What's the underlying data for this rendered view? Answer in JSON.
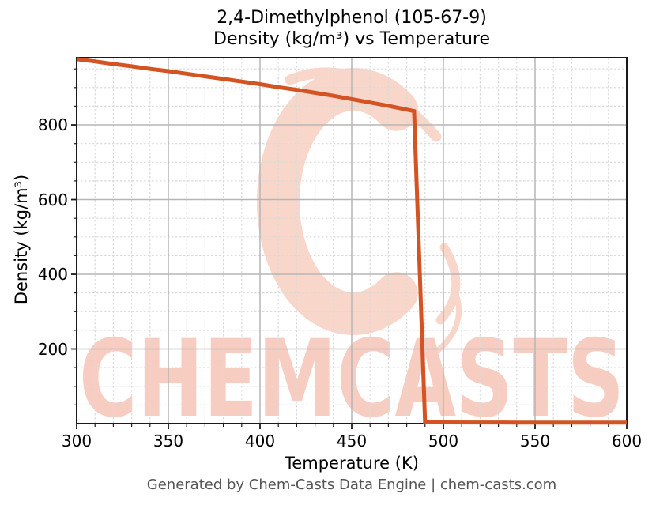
{
  "figure": {
    "watermark_text": "CHEMCASTS",
    "footer": "Generated by Chem-Casts Data Engine | chem-casts.com"
  },
  "colors": {
    "line": "#d35322",
    "grid_major": "#b5b5b5",
    "grid_minor": "#dadada",
    "spine": "#1a1a1a",
    "tick": "#1a1a1a",
    "watermark_logo": "#f9d6ca",
    "watermark_text": "#f8cdc1",
    "title_text": "#000000",
    "footer_text": "#545454"
  },
  "chart_data": {
    "type": "line",
    "title_lines": [
      "2,4-Dimethylphenol (105-67-9)",
      "Density (kg/m³) vs Temperature"
    ],
    "xlabel": "Temperature (K)",
    "ylabel": "Density (kg/m³)",
    "xlim": [
      300,
      600
    ],
    "ylim": [
      0,
      980
    ],
    "x_major_ticks": [
      300,
      350,
      400,
      450,
      500,
      550,
      600
    ],
    "x_minor_step": 10,
    "y_major_ticks": [
      200,
      400,
      600,
      800
    ],
    "y_minor_step": 50,
    "grid": true,
    "legend": "none",
    "series": [
      {
        "name": "Density",
        "points": [
          [
            300,
            976
          ],
          [
            310,
            970
          ],
          [
            320,
            963
          ],
          [
            330,
            957
          ],
          [
            340,
            950
          ],
          [
            350,
            944
          ],
          [
            360,
            937
          ],
          [
            370,
            930
          ],
          [
            380,
            923
          ],
          [
            390,
            916
          ],
          [
            400,
            909
          ],
          [
            410,
            901
          ],
          [
            420,
            894
          ],
          [
            430,
            886
          ],
          [
            440,
            878
          ],
          [
            450,
            869
          ],
          [
            460,
            860
          ],
          [
            470,
            851
          ],
          [
            480,
            841
          ],
          [
            484,
            837
          ],
          [
            490,
            3.2
          ],
          [
            500,
            3.1
          ],
          [
            520,
            3.0
          ],
          [
            540,
            2.8
          ],
          [
            560,
            2.7
          ],
          [
            580,
            2.6
          ],
          [
            600,
            2.5
          ]
        ]
      }
    ]
  }
}
